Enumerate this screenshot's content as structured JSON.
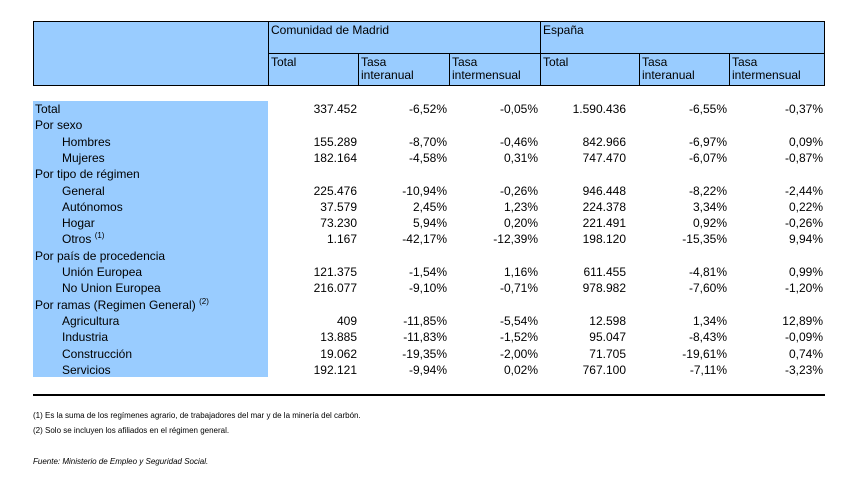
{
  "header": {
    "group_madrid": "Comunidad de Madrid",
    "group_espana": "España",
    "col_total": "Total",
    "col_tasa_interanual_1": "Tasa",
    "col_tasa_interanual_2": "interanual",
    "col_tasa_intermensual_1": "Tasa",
    "col_tasa_intermensual_2": "intermensual"
  },
  "rows": [
    {
      "label": "Total",
      "values": [
        "337.452",
        "-6,52%",
        "-0,05%",
        "1.590.436",
        "-6,55%",
        "-0,37%"
      ]
    },
    {
      "label": "Por sexo",
      "values": [
        "",
        "",
        "",
        "",
        "",
        ""
      ]
    },
    {
      "label": "Hombres",
      "values": [
        "155.289",
        "-8,70%",
        "-0,46%",
        "842.966",
        "-6,97%",
        "0,09%"
      ]
    },
    {
      "label": "Mujeres",
      "values": [
        "182.164",
        "-4,58%",
        "0,31%",
        "747.470",
        "-6,07%",
        "-0,87%"
      ]
    },
    {
      "label": "Por tipo de régimen",
      "values": [
        "",
        "",
        "",
        "",
        "",
        ""
      ]
    },
    {
      "label": "General",
      "values": [
        "225.476",
        "-10,94%",
        "-0,26%",
        "946.448",
        "-8,22%",
        "-2,44%"
      ]
    },
    {
      "label": "Autónomos",
      "values": [
        "37.579",
        "2,45%",
        "1,23%",
        "224.378",
        "3,34%",
        "0,22%"
      ]
    },
    {
      "label": "Hogar",
      "values": [
        "73.230",
        "5,94%",
        "0,20%",
        "221.491",
        "0,92%",
        "-0,26%"
      ]
    },
    {
      "label": "Otros",
      "sup": "(1)",
      "values": [
        "1.167",
        "-42,17%",
        "-12,39%",
        "198.120",
        "-15,35%",
        "9,94%"
      ]
    },
    {
      "label": "Por país de procedencia",
      "values": [
        "",
        "",
        "",
        "",
        "",
        ""
      ]
    },
    {
      "label": "Unión Europea",
      "values": [
        "121.375",
        "-1,54%",
        "1,16%",
        "611.455",
        "-4,81%",
        "0,99%"
      ]
    },
    {
      "label": "No Union Europea",
      "values": [
        "216.077",
        "-9,10%",
        "-0,71%",
        "978.982",
        "-7,60%",
        "-1,20%"
      ]
    },
    {
      "label": "Por ramas (Regimen General)",
      "sup": "(2)",
      "values": [
        "",
        "",
        "",
        "",
        "",
        ""
      ]
    },
    {
      "label": "Agricultura",
      "values": [
        "409",
        "-11,85%",
        "-5,54%",
        "12.598",
        "1,34%",
        "12,89%"
      ]
    },
    {
      "label": "Industria",
      "values": [
        "13.885",
        "-11,83%",
        "-1,52%",
        "95.047",
        "-8,43%",
        "-0,09%"
      ]
    },
    {
      "label": "Construcción",
      "values": [
        "19.062",
        "-19,35%",
        "-2,00%",
        "71.705",
        "-19,61%",
        "0,74%"
      ]
    },
    {
      "label": "Servicios",
      "values": [
        "192.121",
        "-9,94%",
        "0,02%",
        "767.100",
        "-7,11%",
        "-3,23%"
      ]
    }
  ],
  "notes": [
    "(1) Es la suma de los regímenes  agrario, de trabajadores del mar y de la minería del carbón.",
    "(2) Solo se incluyen los afiliados en el régimen general."
  ],
  "source": "Fuente: Ministerio de Empleo y Seguridad Social.",
  "colors": {
    "header_bg": "#99ccff"
  }
}
